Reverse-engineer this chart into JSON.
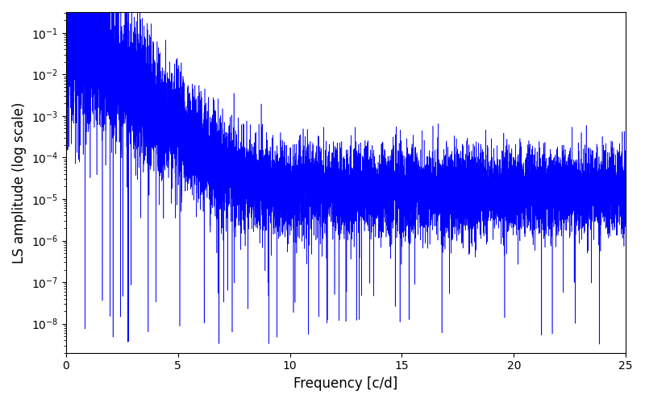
{
  "title": "",
  "xlabel": "Frequency [c/d]",
  "ylabel": "LS amplitude (log scale)",
  "xlim": [
    0,
    25
  ],
  "ylim_log": [
    -8.7,
    -0.5
  ],
  "line_color": "#0000ff",
  "line_width": 0.4,
  "background_color": "#ffffff",
  "figsize": [
    8.0,
    5.0
  ],
  "dpi": 100,
  "seed": 12345,
  "n_points": 12000,
  "freq_max": 25.0,
  "peak_amplitude": 0.18,
  "noise_floor_log": -4.8,
  "yticks": [
    1e-08,
    1e-07,
    1e-06,
    1e-05,
    0.0001,
    0.001,
    0.01,
    0.1
  ]
}
